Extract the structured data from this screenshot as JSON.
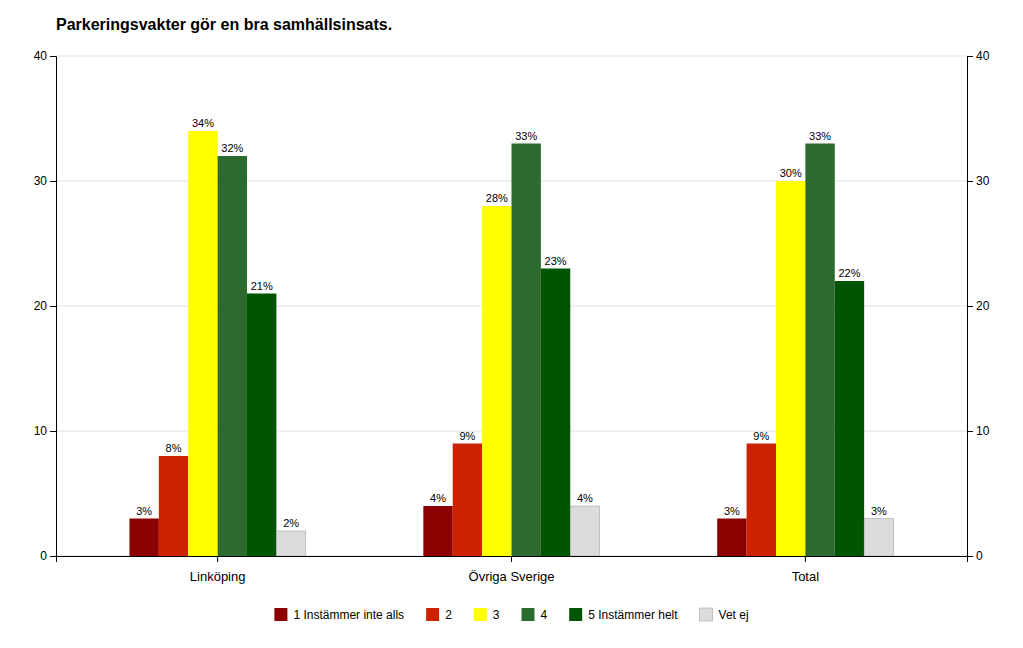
{
  "chart_data": {
    "type": "bar",
    "title": "Parkeringsvakter gör en bra samhällsinsats.",
    "categories": [
      "Linköping",
      "Övriga Sverige",
      "Total"
    ],
    "series": [
      {
        "name": "1 Instämmer inte alls",
        "color": "#8b0000",
        "values": [
          3,
          4,
          3
        ],
        "value_labels": [
          "3%",
          "4%",
          "3%"
        ]
      },
      {
        "name": "2",
        "color": "#cc2200",
        "values": [
          8,
          9,
          9
        ],
        "value_labels": [
          "8%",
          "9%",
          "9%"
        ]
      },
      {
        "name": "3",
        "color": "#ffff00",
        "values": [
          34,
          28,
          30
        ],
        "value_labels": [
          "34%",
          "28%",
          "30%"
        ]
      },
      {
        "name": "4",
        "color": "#2d6a2d",
        "values": [
          32,
          33,
          33
        ],
        "value_labels": [
          "32%",
          "33%",
          "33%"
        ]
      },
      {
        "name": "5  Instämmer helt",
        "color": "#005500",
        "values": [
          21,
          23,
          22
        ],
        "value_labels": [
          "21%",
          "23%",
          "22%"
        ]
      },
      {
        "name": "Vet ej",
        "color": "#dcdcdc",
        "values": [
          2,
          4,
          3
        ],
        "value_labels": [
          "2%",
          "4%",
          "3%"
        ]
      }
    ],
    "ylim": [
      0,
      40
    ],
    "yticks": [
      0,
      10,
      20,
      30,
      40
    ],
    "y2lim": [
      0,
      40
    ],
    "y2ticks": [
      0,
      10,
      20,
      30,
      40
    ],
    "grid": true,
    "data_labels": true,
    "legend": "bottom"
  }
}
